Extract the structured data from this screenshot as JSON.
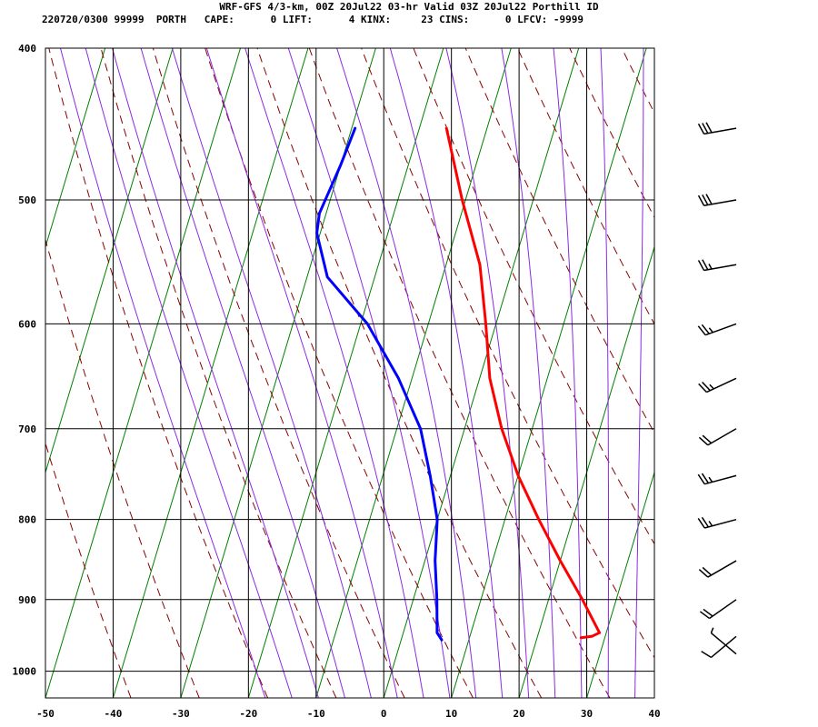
{
  "header": {
    "title": "WRF-GFS 4/3-km, 00Z 20Jul22 03-hr Valid 03Z 20Jul22 Porthill ID",
    "stats": "220720/0300 99999  PORTH   CAPE:      0 LIFT:      4 KINX:     23 CINS:      0 LFCV: -9999"
  },
  "chart_data": {
    "type": "line",
    "chart_kind": "skew-t",
    "title": "WRF-GFS 4/3-km, 00Z 20Jul22 03-hr Valid 03Z 20Jul22 Porthill ID",
    "xlabel": "",
    "ylabel": "",
    "x_ticks": [
      -50,
      -40,
      -30,
      -20,
      -10,
      0,
      10,
      20,
      30,
      40
    ],
    "y_ticks": [
      400,
      500,
      600,
      700,
      800,
      900,
      1000
    ],
    "xlim": [
      -50,
      40
    ],
    "ylim": [
      1040,
      400
    ],
    "y_scale": "log",
    "grid": true,
    "colors": {
      "temperature": "#ff0000",
      "dewpoint": "#0000ff",
      "isotherm": "#008000",
      "dry_adiabat": "#8b0000",
      "moist_adiabat": "#8a2be2",
      "wind_barb": "#000000",
      "grid": "#000000"
    },
    "series": [
      {
        "key": "temperature",
        "points": [
          {
            "p": 450,
            "t": -16
          },
          {
            "p": 500,
            "t": -10.5
          },
          {
            "p": 550,
            "t": -5
          },
          {
            "p": 600,
            "t": -1.5
          },
          {
            "p": 650,
            "t": 1.5
          },
          {
            "p": 700,
            "t": 5.5
          },
          {
            "p": 750,
            "t": 10
          },
          {
            "p": 800,
            "t": 15
          },
          {
            "p": 850,
            "t": 20
          },
          {
            "p": 900,
            "t": 25
          },
          {
            "p": 945,
            "t": 29
          },
          {
            "p": 950,
            "t": 28
          },
          {
            "p": 952,
            "t": 26.5
          }
        ]
      },
      {
        "key": "dewpoint",
        "points": [
          {
            "p": 450,
            "t": -29.5
          },
          {
            "p": 475,
            "t": -30
          },
          {
            "p": 510,
            "t": -31
          },
          {
            "p": 525,
            "t": -30.5
          },
          {
            "p": 560,
            "t": -27
          },
          {
            "p": 600,
            "t": -19
          },
          {
            "p": 650,
            "t": -12
          },
          {
            "p": 700,
            "t": -6.5
          },
          {
            "p": 750,
            "t": -3
          },
          {
            "p": 800,
            "t": 0
          },
          {
            "p": 850,
            "t": 1.5
          },
          {
            "p": 900,
            "t": 3.5
          },
          {
            "p": 945,
            "t": 5
          },
          {
            "p": 955,
            "t": 6
          }
        ]
      }
    ],
    "wind_barbs": [
      {
        "p": 450,
        "dir": 260,
        "speed": 30
      },
      {
        "p": 500,
        "dir": 260,
        "speed": 30
      },
      {
        "p": 550,
        "dir": 260,
        "speed": 25
      },
      {
        "p": 600,
        "dir": 250,
        "speed": 25
      },
      {
        "p": 650,
        "dir": 245,
        "speed": 25
      },
      {
        "p": 700,
        "dir": 240,
        "speed": 20
      },
      {
        "p": 750,
        "dir": 255,
        "speed": 25
      },
      {
        "p": 800,
        "dir": 255,
        "speed": 25
      },
      {
        "p": 850,
        "dir": 240,
        "speed": 20
      },
      {
        "p": 900,
        "dir": 235,
        "speed": 20
      },
      {
        "p": 950,
        "dir": 230,
        "speed": 10
      },
      {
        "p": 975,
        "dir": 310,
        "speed": 5
      }
    ]
  }
}
